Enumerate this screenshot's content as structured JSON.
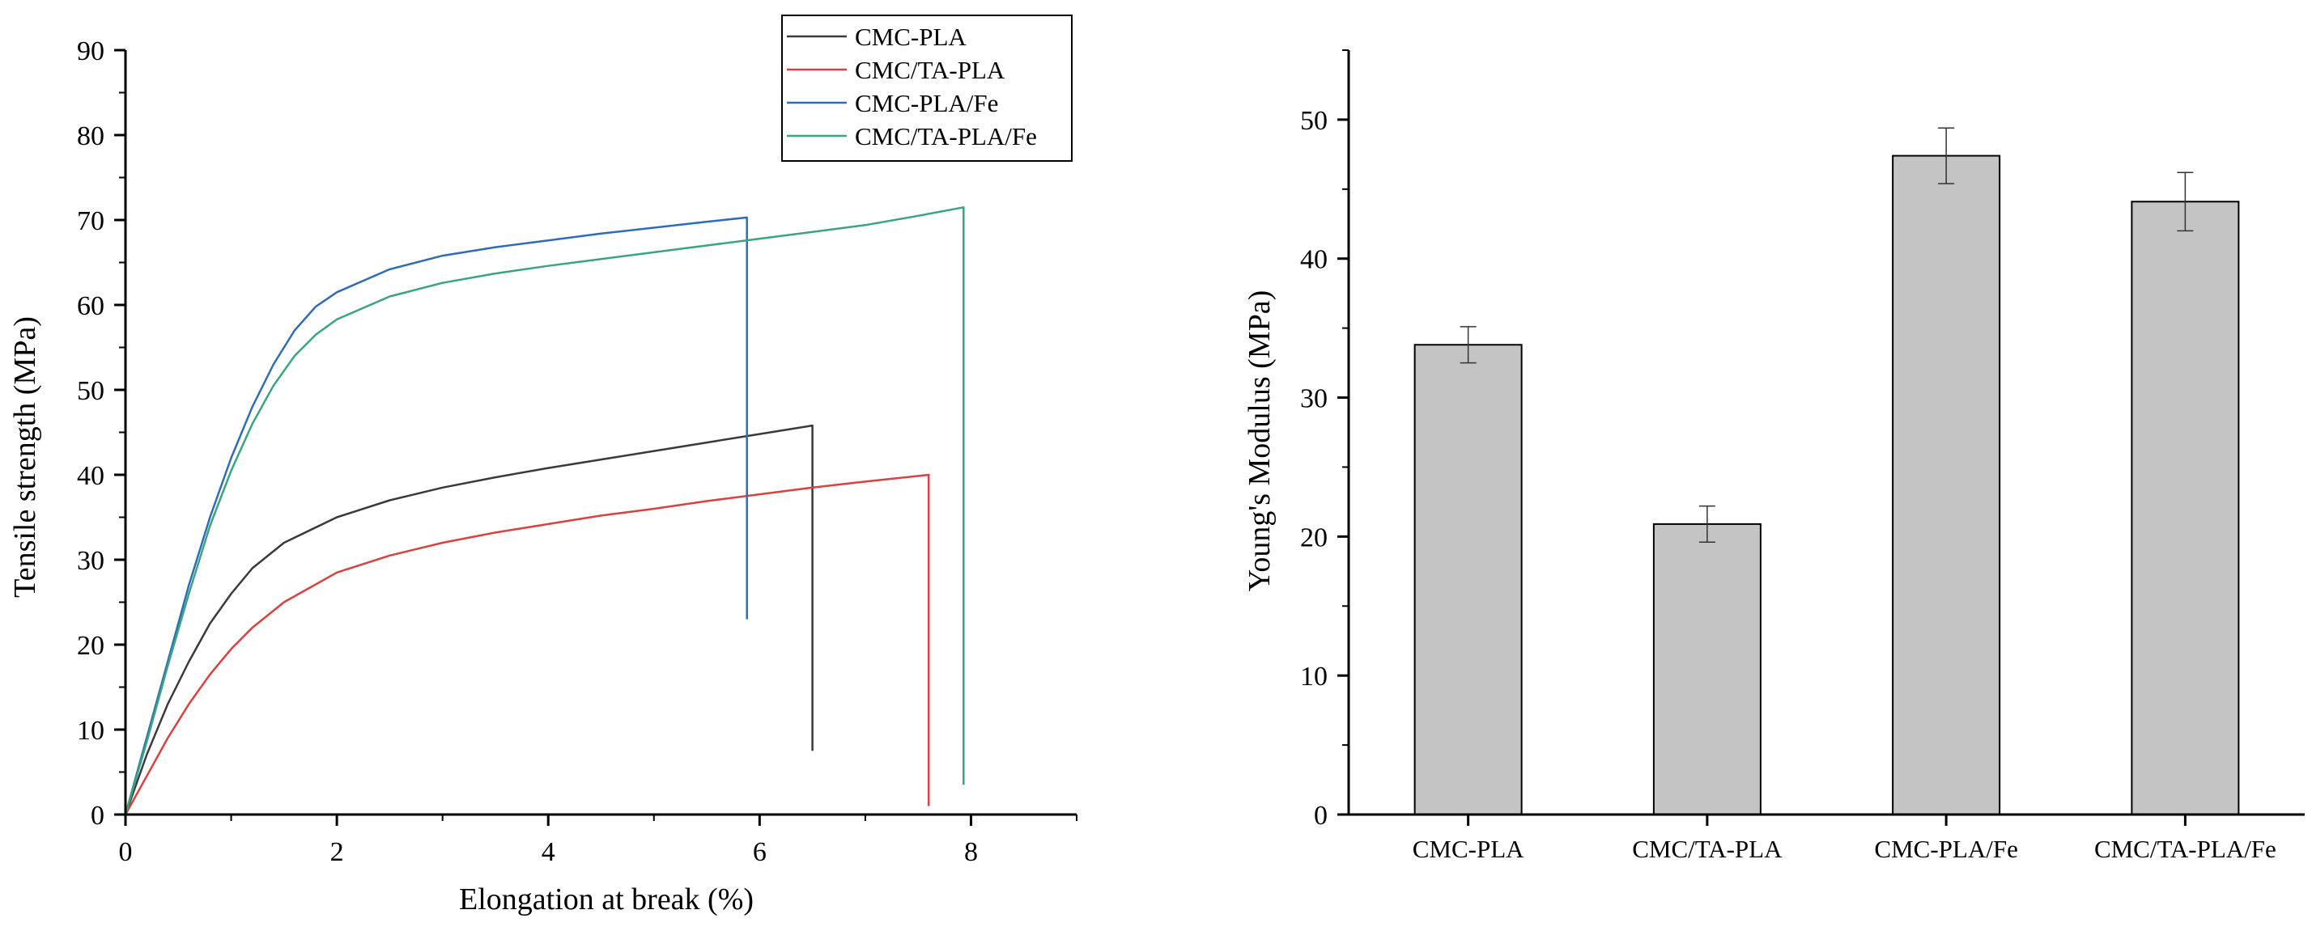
{
  "chart_data": [
    {
      "type": "line",
      "xlabel": "Elongation at break (%)",
      "ylabel": "Tensile strength (MPa)",
      "xlim": [
        0,
        9
      ],
      "ylim": [
        0,
        90
      ],
      "x_ticks": [
        "0",
        "2",
        "4",
        "6",
        "8"
      ],
      "y_ticks": [
        "0",
        "10",
        "20",
        "30",
        "40",
        "50",
        "60",
        "70",
        "80",
        "90"
      ],
      "legend_position": "top-right",
      "series": [
        {
          "name": "CMC-PLA",
          "color": "#3a3a3a",
          "points": [
            [
              0,
              0
            ],
            [
              0.2,
              7
            ],
            [
              0.4,
              13
            ],
            [
              0.6,
              18
            ],
            [
              0.8,
              22.5
            ],
            [
              1.0,
              26
            ],
            [
              1.2,
              29
            ],
            [
              1.5,
              32
            ],
            [
              2.0,
              35
            ],
            [
              2.5,
              37
            ],
            [
              3.0,
              38.5
            ],
            [
              3.5,
              39.7
            ],
            [
              4.0,
              40.8
            ],
            [
              4.5,
              41.8
            ],
            [
              5.0,
              42.8
            ],
            [
              5.5,
              43.8
            ],
            [
              6.0,
              44.8
            ],
            [
              6.5,
              45.8
            ],
            [
              6.5,
              7.5
            ]
          ]
        },
        {
          "name": "CMC/TA-PLA",
          "color": "#d9413e",
          "points": [
            [
              0,
              0
            ],
            [
              0.2,
              4.5
            ],
            [
              0.4,
              9
            ],
            [
              0.6,
              13
            ],
            [
              0.8,
              16.5
            ],
            [
              1.0,
              19.5
            ],
            [
              1.2,
              22
            ],
            [
              1.5,
              25
            ],
            [
              2.0,
              28.5
            ],
            [
              2.5,
              30.5
            ],
            [
              3.0,
              32
            ],
            [
              3.5,
              33.2
            ],
            [
              4.0,
              34.2
            ],
            [
              4.5,
              35.2
            ],
            [
              5.0,
              36
            ],
            [
              5.5,
              36.9
            ],
            [
              6.0,
              37.7
            ],
            [
              6.5,
              38.5
            ],
            [
              7.0,
              39.2
            ],
            [
              7.6,
              40
            ],
            [
              7.6,
              1
            ]
          ]
        },
        {
          "name": "CMC-PLA/Fe",
          "color": "#2e6cb8",
          "points": [
            [
              0,
              0
            ],
            [
              0.2,
              9
            ],
            [
              0.4,
              18
            ],
            [
              0.6,
              27
            ],
            [
              0.8,
              35
            ],
            [
              1.0,
              42
            ],
            [
              1.2,
              48
            ],
            [
              1.4,
              53
            ],
            [
              1.6,
              57
            ],
            [
              1.8,
              59.8
            ],
            [
              2.0,
              61.5
            ],
            [
              2.5,
              64.2
            ],
            [
              3.0,
              65.8
            ],
            [
              3.5,
              66.8
            ],
            [
              4.0,
              67.6
            ],
            [
              4.5,
              68.4
            ],
            [
              5.0,
              69.1
            ],
            [
              5.5,
              69.8
            ],
            [
              5.88,
              70.3
            ],
            [
              5.88,
              23
            ]
          ]
        },
        {
          "name": "CMC/TA-PLA/Fe",
          "color": "#3aa57b",
          "points": [
            [
              0,
              0
            ],
            [
              0.2,
              8.5
            ],
            [
              0.4,
              17.5
            ],
            [
              0.6,
              26
            ],
            [
              0.8,
              34
            ],
            [
              1.0,
              40.5
            ],
            [
              1.2,
              46
            ],
            [
              1.4,
              50.5
            ],
            [
              1.6,
              54
            ],
            [
              1.8,
              56.5
            ],
            [
              2.0,
              58.3
            ],
            [
              2.5,
              61
            ],
            [
              3.0,
              62.6
            ],
            [
              3.5,
              63.7
            ],
            [
              4.0,
              64.6
            ],
            [
              4.5,
              65.4
            ],
            [
              5.0,
              66.2
            ],
            [
              5.5,
              67
            ],
            [
              6.0,
              67.8
            ],
            [
              6.5,
              68.6
            ],
            [
              7.0,
              69.4
            ],
            [
              7.5,
              70.5
            ],
            [
              7.93,
              71.5
            ],
            [
              7.93,
              3.5
            ]
          ]
        }
      ]
    },
    {
      "type": "bar",
      "xlabel": "",
      "ylabel": "Young's Modulus (MPa)",
      "ylim": [
        0,
        55
      ],
      "y_ticks": [
        "0",
        "10",
        "20",
        "30",
        "40",
        "50"
      ],
      "categories": [
        "CMC-PLA",
        "CMC/TA-PLA",
        "CMC-PLA/Fe",
        "CMC/TA-PLA/Fe"
      ],
      "values": [
        33.8,
        20.9,
        47.4,
        44.1
      ],
      "errors": [
        1.3,
        1.3,
        2.0,
        2.1
      ],
      "bar_color": "#c4c4c4"
    }
  ]
}
